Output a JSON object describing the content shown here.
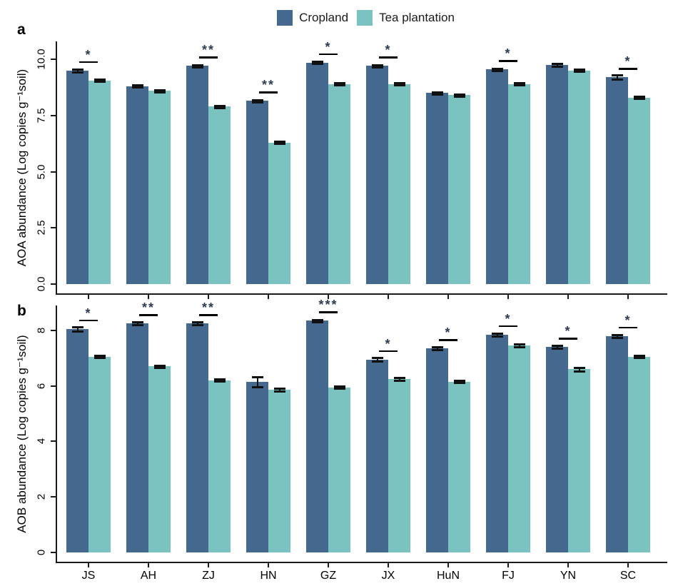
{
  "figure": {
    "background": "#ffffff",
    "axis_color": "#1a1a1a",
    "sig_color": "#2e3c52",
    "legend": {
      "items": [
        {
          "label": "Cropland",
          "color": "#44688E"
        },
        {
          "label": "Tea plantation",
          "color": "#7AC3C1"
        }
      ]
    }
  },
  "chart_data": [
    {
      "type": "bar",
      "panel_label": "a",
      "ylabel": "AOA abundance (Log copies g⁻¹soil)",
      "xlabel": "",
      "ylim": [
        0,
        10
      ],
      "grid": false,
      "legend_position": "top-center",
      "yticks": [
        {
          "value": 0,
          "label": "0.0"
        },
        {
          "value": 2.5,
          "label": "2.5"
        },
        {
          "value": 5,
          "label": "5.0"
        },
        {
          "value": 7.5,
          "label": "7.5"
        },
        {
          "value": 10,
          "label": "10.0"
        }
      ],
      "categories": [
        "JS",
        "AH",
        "ZJ",
        "HN",
        "GZ",
        "JX",
        "HuN",
        "FJ",
        "YN",
        "SC"
      ],
      "show_x_tick_labels": false,
      "series": [
        {
          "name": "Cropland",
          "color": "#44688E",
          "values": [
            9.5,
            8.8,
            9.7,
            8.15,
            9.85,
            9.7,
            8.5,
            9.55,
            9.75,
            9.2
          ],
          "errors": [
            0.06,
            0.04,
            0.04,
            0.05,
            0.04,
            0.04,
            0.05,
            0.04,
            0.06,
            0.1
          ]
        },
        {
          "name": "Tea plantation",
          "color": "#7AC3C1",
          "values": [
            9.05,
            8.6,
            7.9,
            6.3,
            8.9,
            8.9,
            8.4,
            8.9,
            9.5,
            8.3
          ],
          "errors": [
            0.04,
            0.04,
            0.05,
            0.05,
            0.04,
            0.05,
            0.04,
            0.05,
            0.04,
            0.04
          ]
        }
      ],
      "significance": [
        "*",
        "",
        "**",
        "**",
        "*",
        "*",
        "",
        "*",
        "",
        "*"
      ]
    },
    {
      "type": "bar",
      "panel_label": "b",
      "ylabel": "AOB abundance (Log copies g⁻¹soil)",
      "xlabel": "",
      "ylim": [
        0,
        8
      ],
      "grid": false,
      "legend_position": "none",
      "yticks": [
        {
          "value": 0,
          "label": "0"
        },
        {
          "value": 2,
          "label": "2"
        },
        {
          "value": 4,
          "label": "4"
        },
        {
          "value": 6,
          "label": "6"
        },
        {
          "value": 8,
          "label": "8"
        }
      ],
      "categories": [
        "JS",
        "AH",
        "ZJ",
        "HN",
        "GZ",
        "JX",
        "HuN",
        "FJ",
        "YN",
        "SC"
      ],
      "show_x_tick_labels": true,
      "series": [
        {
          "name": "Cropland",
          "color": "#44688E",
          "values": [
            8.05,
            8.25,
            8.25,
            6.15,
            8.35,
            6.95,
            7.35,
            7.85,
            7.4,
            7.8
          ],
          "errors": [
            0.07,
            0.05,
            0.05,
            0.18,
            0.04,
            0.06,
            0.05,
            0.05,
            0.05,
            0.05
          ]
        },
        {
          "name": "Tea plantation",
          "color": "#7AC3C1",
          "values": [
            7.05,
            6.7,
            6.2,
            5.85,
            5.95,
            6.25,
            6.15,
            7.45,
            6.6,
            7.05
          ],
          "errors": [
            0.04,
            0.04,
            0.04,
            0.05,
            0.04,
            0.06,
            0.04,
            0.05,
            0.06,
            0.04
          ]
        }
      ],
      "significance": [
        "*",
        "**",
        "**",
        "",
        "***",
        "*",
        "*",
        "*",
        "*",
        "*"
      ]
    }
  ]
}
